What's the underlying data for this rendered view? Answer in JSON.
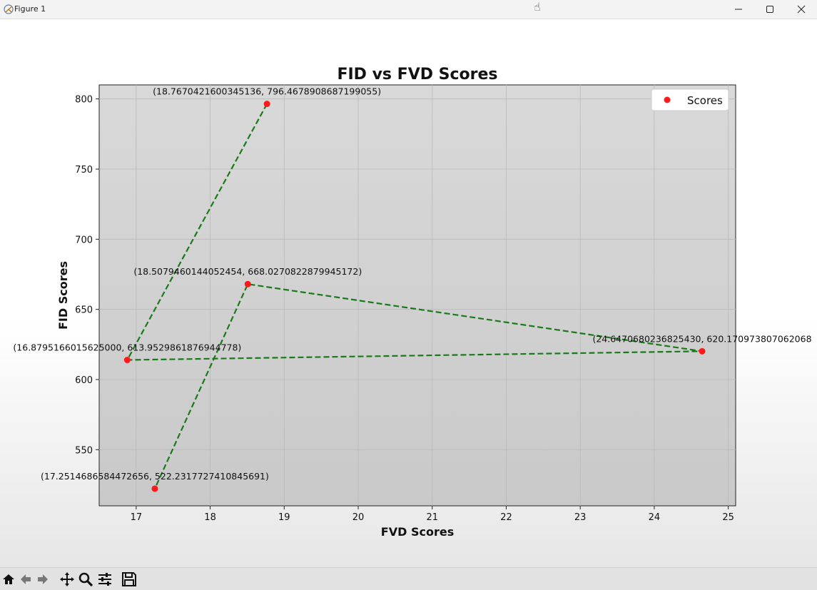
{
  "window": {
    "title": "Figure 1",
    "icons": [
      "matplotlib-app-icon",
      "minimize-icon",
      "maximize-icon",
      "close-icon"
    ]
  },
  "toolbar": {
    "buttons": [
      "home-icon",
      "back-arrow-icon",
      "forward-arrow-icon",
      "pan-icon",
      "zoom-icon",
      "configure-subplots-icon",
      "save-icon"
    ]
  },
  "chart_data": {
    "type": "scatter",
    "title": "FID vs FVD Scores",
    "xlabel": "FVD Scores",
    "ylabel": "FID Scores",
    "xlim": [
      16.5,
      25.1
    ],
    "ylim": [
      510,
      810
    ],
    "xticks": [
      17,
      18,
      19,
      20,
      21,
      22,
      23,
      24,
      25
    ],
    "yticks": [
      550,
      600,
      650,
      700,
      750,
      800
    ],
    "grid": true,
    "legend": {
      "position": "top-right",
      "entries": [
        "Scores"
      ]
    },
    "colors": {
      "points": "#ff1a1a",
      "line": "#1a7a1a",
      "plot_bg": "#d6d6d6"
    },
    "series": [
      {
        "name": "Scores",
        "points": [
          {
            "x": 18.767042160034514,
            "y": 796.4678908687199,
            "label": "(18.7670421600345136, 796.4678908687199055)"
          },
          {
            "x": 16.8795166015625,
            "y": 613.9529861876945,
            "label": "(16.8795166015625000, 613.9529861876944778)"
          },
          {
            "x": 24.647068023682543,
            "y": 620.1709738070621,
            "label": "(24.6470680236825430, 620.170973807062068"
          },
          {
            "x": 18.507946014405245,
            "y": 668.0270822879945,
            "label": "(18.5079460144052454, 668.0270822879945172)"
          },
          {
            "x": 17.251468658447266,
            "y": 522.2317727410846,
            "label": "(17.2514686584472656, 522.2317727410845691)"
          }
        ]
      }
    ]
  }
}
